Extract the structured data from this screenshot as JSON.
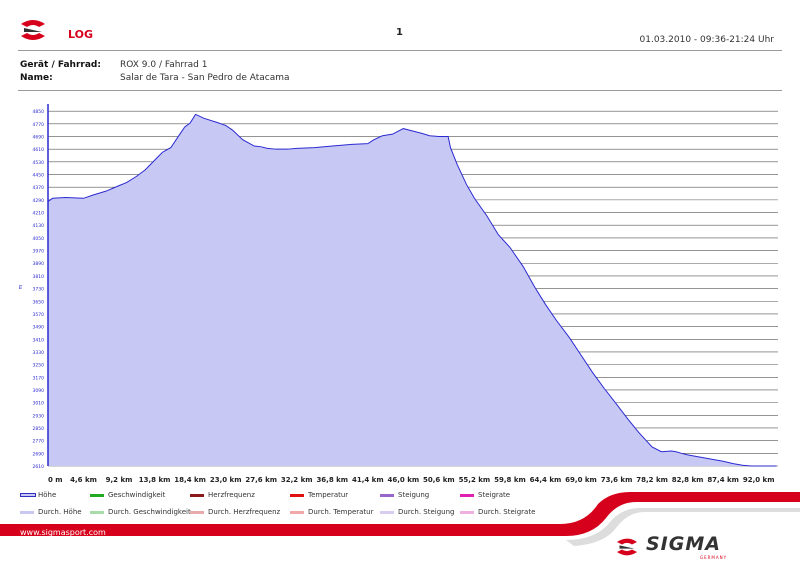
{
  "header": {
    "log_title": "LOG",
    "page_number": "1",
    "date_time": "01.03.2010 - 09:36-21:24 Uhr"
  },
  "info": {
    "device_label": "Gerät / Fahrrad:",
    "device_value": "ROX 9.0 / Fahrrad 1",
    "name_label": "Name:",
    "name_value": "Salar de Tara - San Pedro de Atacama"
  },
  "colors": {
    "area_fill": "#c8c8f5",
    "line": "#2a2ad0",
    "brand_red": "#d6001c",
    "grid": "#555555"
  },
  "chart_data": {
    "type": "area",
    "title": "",
    "xlabel": "",
    "ylabel": "m",
    "x_unit": "km",
    "xlim": [
      0,
      94.5
    ],
    "ylim": [
      2610,
      4870
    ],
    "grid": true,
    "y_ticks": [
      "2610",
      "2690",
      "2770",
      "2850",
      "2930",
      "3010",
      "3090",
      "3170",
      "3250",
      "3330",
      "3410",
      "3490",
      "3570",
      "3650",
      "3730",
      "3810",
      "3890",
      "3970",
      "4050",
      "4130",
      "4210",
      "4290",
      "4370",
      "4450",
      "4530",
      "4610",
      "4690",
      "4770",
      "4850"
    ],
    "x_ticks": [
      "0 m",
      "4,6 km",
      "9,2 km",
      "13,8 km",
      "18,4 km",
      "23,0 km",
      "27,6 km",
      "32,2 km",
      "36,8 km",
      "41,4 km",
      "46,0 km",
      "50,6 km",
      "55,2 km",
      "59,8 km",
      "64,4 km",
      "69,0 km",
      "73,6 km",
      "78,2 km",
      "82,8 km",
      "87,4 km",
      "92,0 km"
    ],
    "series": [
      {
        "name": "Höhe",
        "x": [
          0,
          0.6,
          2.3,
          4.6,
          5.8,
          7.5,
          9.2,
          10.2,
          11.5,
          12.6,
          13.8,
          14.8,
          15.9,
          17.0,
          17.7,
          18.4,
          19.1,
          20.2,
          21.8,
          23.0,
          23.9,
          25.2,
          26.7,
          27.6,
          28.4,
          29.5,
          31.0,
          32.2,
          34.5,
          36.8,
          38.0,
          39.3,
          41.4,
          42.2,
          43.3,
          44.6,
          46.0,
          47.2,
          48.4,
          49.4,
          50.6,
          51.2,
          51.8,
          52.1,
          53.0,
          54.2,
          55.2,
          56.8,
          58.3,
          59.8,
          61.5,
          63.0,
          64.4,
          65.8,
          67.5,
          69.0,
          70.5,
          72.0,
          73.6,
          75.0,
          76.5,
          78.2,
          79.4,
          80.7,
          81.3,
          82.0,
          82.8,
          84.5,
          86.2,
          87.4,
          88.7,
          89.9,
          91.0,
          92.0,
          94.3
        ],
        "values": [
          4280,
          4300,
          4305,
          4300,
          4320,
          4345,
          4380,
          4400,
          4440,
          4480,
          4540,
          4590,
          4620,
          4700,
          4750,
          4775,
          4830,
          4805,
          4780,
          4760,
          4730,
          4670,
          4630,
          4625,
          4615,
          4610,
          4610,
          4615,
          4620,
          4630,
          4635,
          4640,
          4645,
          4670,
          4695,
          4705,
          4740,
          4725,
          4710,
          4695,
          4690,
          4690,
          4690,
          4620,
          4510,
          4385,
          4300,
          4190,
          4070,
          3990,
          3870,
          3740,
          3630,
          3530,
          3420,
          3310,
          3200,
          3100,
          3000,
          2910,
          2820,
          2730,
          2700,
          2705,
          2700,
          2690,
          2680,
          2665,
          2650,
          2640,
          2625,
          2615,
          2610,
          2610,
          2610
        ]
      }
    ]
  },
  "legend": [
    {
      "label": "Höhe",
      "color": "#3030c0",
      "style": "box"
    },
    {
      "label": "Geschwindigkeit",
      "color": "#22aa22"
    },
    {
      "label": "Herzfrequenz",
      "color": "#8b1a1a"
    },
    {
      "label": "Temperatur",
      "color": "#e01010"
    },
    {
      "label": "Steigung",
      "color": "#9966cc"
    },
    {
      "label": "Steigrate",
      "color": "#e020b0"
    },
    {
      "label": "Durch. Höhe",
      "color": "#c8c8f0"
    },
    {
      "label": "Durch. Geschwindigkeit",
      "color": "#a8dca8"
    },
    {
      "label": "Durch. Herzfrequenz",
      "color": "#e8aaaa"
    },
    {
      "label": "Durch. Temperatur",
      "color": "#f0a8a8"
    },
    {
      "label": "Durch. Steigung",
      "color": "#d8ccf0"
    },
    {
      "label": "Durch. Steigrate",
      "color": "#f0b0e0"
    }
  ],
  "footer": {
    "url": "www.sigmasport.com",
    "brand": "SIGMA",
    "sub": "GERMANY"
  }
}
